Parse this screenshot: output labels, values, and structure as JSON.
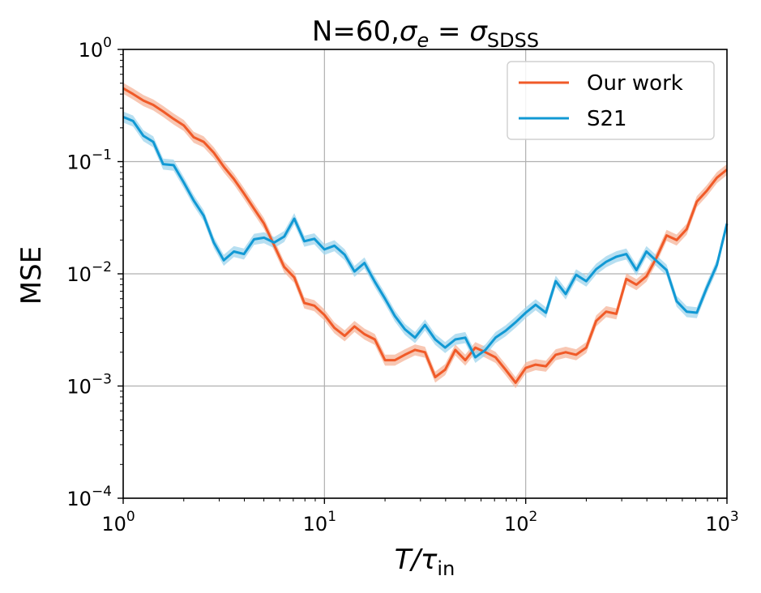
{
  "chart_data": {
    "type": "line",
    "title": {
      "main": "N=60,",
      "sigma": "σ",
      "sub_e": "e",
      "eq": " = ",
      "sigma2": "σ",
      "sub_sdss": "SDSS"
    },
    "xlabel": {
      "main": "T/τ",
      "sub": "in"
    },
    "ylabel": "MSE",
    "x_scale": "log",
    "y_scale": "log",
    "xlim": [
      1,
      1000
    ],
    "ylim": [
      0.0001,
      1
    ],
    "x_ticks": [
      {
        "base": "10",
        "exp": "0",
        "value": 1
      },
      {
        "base": "10",
        "exp": "1",
        "value": 10
      },
      {
        "base": "10",
        "exp": "2",
        "value": 100
      },
      {
        "base": "10",
        "exp": "3",
        "value": 1000
      }
    ],
    "y_ticks": [
      {
        "base": "10",
        "exp": "0",
        "value": 1
      },
      {
        "base": "10",
        "exp": "−1",
        "value": 0.1
      },
      {
        "base": "10",
        "exp": "−2",
        "value": 0.01
      },
      {
        "base": "10",
        "exp": "−3",
        "value": 0.001
      },
      {
        "base": "10",
        "exp": "−4",
        "value": 0.0001
      }
    ],
    "grid": true,
    "legend_position": "top-right",
    "series": [
      {
        "name": "Our work",
        "color": "#f05a28",
        "band_color": "#f6b49a",
        "points": [
          [
            1.0,
            0.45
          ],
          [
            1.12,
            0.4
          ],
          [
            1.26,
            0.35
          ],
          [
            1.41,
            0.32
          ],
          [
            1.58,
            0.28
          ],
          [
            1.78,
            0.24
          ],
          [
            2.0,
            0.21
          ],
          [
            2.24,
            0.165
          ],
          [
            2.51,
            0.15
          ],
          [
            2.82,
            0.12
          ],
          [
            3.16,
            0.09
          ],
          [
            3.55,
            0.07
          ],
          [
            3.98,
            0.052
          ],
          [
            4.47,
            0.038
          ],
          [
            5.01,
            0.028
          ],
          [
            5.62,
            0.018
          ],
          [
            6.31,
            0.0115
          ],
          [
            7.08,
            0.0093
          ],
          [
            7.94,
            0.0055
          ],
          [
            8.91,
            0.0052
          ],
          [
            10.0,
            0.0043
          ],
          [
            11.2,
            0.0033
          ],
          [
            12.6,
            0.0028
          ],
          [
            14.1,
            0.0034
          ],
          [
            15.8,
            0.0029
          ],
          [
            17.8,
            0.0026
          ],
          [
            20.0,
            0.0017
          ],
          [
            22.4,
            0.0017
          ],
          [
            25.1,
            0.0019
          ],
          [
            28.2,
            0.0021
          ],
          [
            31.6,
            0.002
          ],
          [
            35.5,
            0.0012
          ],
          [
            39.8,
            0.0014
          ],
          [
            44.7,
            0.0021
          ],
          [
            50.1,
            0.0017
          ],
          [
            56.2,
            0.0022
          ],
          [
            63.1,
            0.002
          ],
          [
            70.8,
            0.0018
          ],
          [
            79.4,
            0.0014
          ],
          [
            89.1,
            0.00107
          ],
          [
            100,
            0.00145
          ],
          [
            112,
            0.00155
          ],
          [
            126,
            0.0015
          ],
          [
            141,
            0.0019
          ],
          [
            158,
            0.002
          ],
          [
            178,
            0.0019
          ],
          [
            200,
            0.0022
          ],
          [
            224,
            0.0038
          ],
          [
            251,
            0.0046
          ],
          [
            282,
            0.0044
          ],
          [
            316,
            0.009
          ],
          [
            355,
            0.008
          ],
          [
            398,
            0.0095
          ],
          [
            447,
            0.014
          ],
          [
            501,
            0.022
          ],
          [
            562,
            0.02
          ],
          [
            631,
            0.025
          ],
          [
            708,
            0.044
          ],
          [
            794,
            0.055
          ],
          [
            891,
            0.072
          ],
          [
            1000,
            0.085
          ]
        ]
      },
      {
        "name": "S21",
        "color": "#1199d4",
        "band_color": "#9fd4ec",
        "points": [
          [
            1.0,
            0.25
          ],
          [
            1.12,
            0.23
          ],
          [
            1.26,
            0.17
          ],
          [
            1.41,
            0.15
          ],
          [
            1.58,
            0.095
          ],
          [
            1.78,
            0.093
          ],
          [
            2.0,
            0.065
          ],
          [
            2.24,
            0.045
          ],
          [
            2.51,
            0.033
          ],
          [
            2.82,
            0.019
          ],
          [
            3.16,
            0.0132
          ],
          [
            3.55,
            0.0158
          ],
          [
            3.98,
            0.015
          ],
          [
            4.47,
            0.0203
          ],
          [
            5.01,
            0.021
          ],
          [
            5.62,
            0.019
          ],
          [
            6.31,
            0.0215
          ],
          [
            7.08,
            0.031
          ],
          [
            7.94,
            0.0195
          ],
          [
            8.91,
            0.0205
          ],
          [
            10.0,
            0.0165
          ],
          [
            11.2,
            0.0178
          ],
          [
            12.6,
            0.0148
          ],
          [
            14.1,
            0.0105
          ],
          [
            15.8,
            0.0125
          ],
          [
            17.8,
            0.0085
          ],
          [
            20.0,
            0.006
          ],
          [
            22.4,
            0.0042
          ],
          [
            25.1,
            0.0032
          ],
          [
            28.2,
            0.0027
          ],
          [
            31.6,
            0.0035
          ],
          [
            35.5,
            0.0026
          ],
          [
            39.8,
            0.0022
          ],
          [
            44.7,
            0.0026
          ],
          [
            50.1,
            0.0027
          ],
          [
            56.2,
            0.0018
          ],
          [
            63.1,
            0.0021
          ],
          [
            70.8,
            0.0027
          ],
          [
            79.4,
            0.0031
          ],
          [
            89.1,
            0.0037
          ],
          [
            100,
            0.0045
          ],
          [
            112,
            0.0053
          ],
          [
            126,
            0.0045
          ],
          [
            141,
            0.0086
          ],
          [
            158,
            0.0066
          ],
          [
            178,
            0.0098
          ],
          [
            200,
            0.0086
          ],
          [
            224,
            0.011
          ],
          [
            251,
            0.0128
          ],
          [
            282,
            0.0142
          ],
          [
            316,
            0.015
          ],
          [
            355,
            0.0108
          ],
          [
            398,
            0.0158
          ],
          [
            447,
            0.013
          ],
          [
            501,
            0.0108
          ],
          [
            562,
            0.0057
          ],
          [
            631,
            0.0046
          ],
          [
            708,
            0.0045
          ],
          [
            794,
            0.0075
          ],
          [
            891,
            0.012
          ],
          [
            1000,
            0.028
          ]
        ]
      }
    ]
  }
}
